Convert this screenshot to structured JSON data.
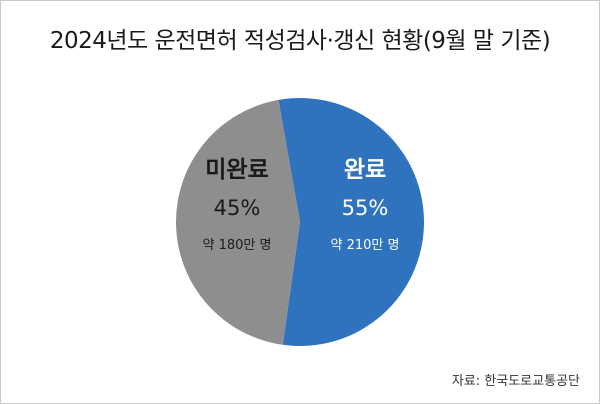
{
  "chart_data": {
    "type": "pie",
    "title": "2024년도 운전면허 적성검사·갱신 현황(9월 말 기준)",
    "slices": [
      {
        "label": "완료",
        "value": 55,
        "percent_label": "55%",
        "note": "약 210만 명",
        "color": "#2f73be",
        "text_color": "#ffffff"
      },
      {
        "label": "미완료",
        "value": 45,
        "percent_label": "45%",
        "note": "약 180만 명",
        "color": "#8e8e8e",
        "text_color": "#1a1a1a"
      }
    ],
    "start_angle_deg": -10,
    "direction": "clockwise"
  },
  "source": "자료: 한국도로교통공단"
}
